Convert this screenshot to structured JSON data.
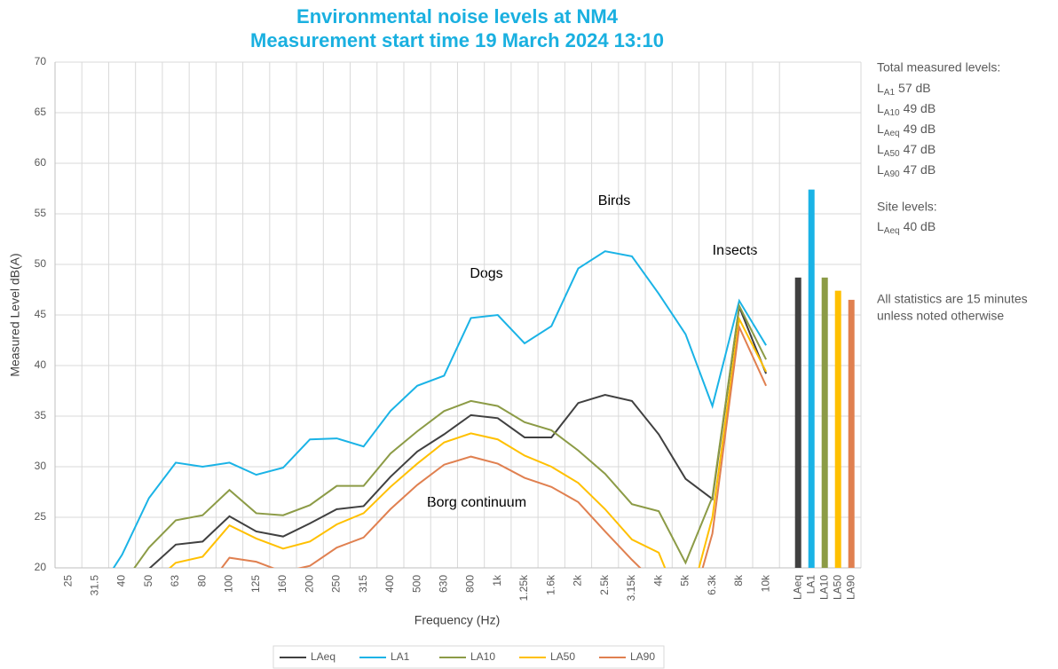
{
  "chart_data": {
    "type": "line",
    "title": "Environmental noise levels at NM4",
    "subtitle": "Measurement start time 19 March 2024 13:10",
    "x_label": "Frequency (Hz)",
    "y_label": "Measured Level dB(A)",
    "ylim": [
      20,
      70
    ],
    "yticks": [
      20,
      25,
      30,
      35,
      40,
      45,
      50,
      55,
      60,
      65,
      70
    ],
    "grid": true,
    "legend": "bottom",
    "categories": [
      "25",
      "31.5",
      "40",
      "50",
      "63",
      "80",
      "100",
      "125",
      "160",
      "200",
      "250",
      "315",
      "400",
      "500",
      "630",
      "800",
      "1k",
      "1.25k",
      "1.6k",
      "2k",
      "2.5k",
      "3.15k",
      "4k",
      "5k",
      "6.3k",
      "8k",
      "10k"
    ],
    "series": [
      {
        "name": "LAeq",
        "color": "#404040",
        "values": [
          null,
          null,
          null,
          19.9,
          22.3,
          22.6,
          25.1,
          23.6,
          23.1,
          24.4,
          25.8,
          26.1,
          29.0,
          31.5,
          33.2,
          35.1,
          34.8,
          32.9,
          32.9,
          36.3,
          37.1,
          36.5,
          33.2,
          28.8,
          26.8,
          45.8,
          39.2
        ]
      },
      {
        "name": "LA1",
        "color": "#1ab3e6",
        "values": [
          null,
          17.2,
          21.3,
          26.9,
          30.4,
          30.0,
          30.4,
          29.2,
          29.9,
          32.7,
          32.8,
          32.0,
          35.5,
          38.0,
          39.0,
          44.7,
          45.0,
          42.2,
          43.9,
          49.6,
          51.3,
          50.8,
          47.1,
          43.1,
          36.0,
          46.4,
          42.0
        ]
      },
      {
        "name": "LA10",
        "color": "#8c9b46",
        "values": [
          null,
          null,
          18.3,
          22.0,
          24.7,
          25.2,
          27.7,
          25.4,
          25.2,
          26.2,
          28.1,
          28.1,
          31.3,
          33.5,
          35.5,
          36.5,
          36.0,
          34.4,
          33.6,
          31.6,
          29.3,
          26.3,
          25.6,
          20.5,
          27.0,
          45.9,
          40.6
        ]
      },
      {
        "name": "LA50",
        "color": "#ffc000",
        "values": [
          null,
          null,
          null,
          18.2,
          20.5,
          21.1,
          24.2,
          22.9,
          21.9,
          22.6,
          24.3,
          25.4,
          28.0,
          30.3,
          32.4,
          33.3,
          32.7,
          31.1,
          30.0,
          28.4,
          25.8,
          22.8,
          21.5,
          15.0,
          25.0,
          44.6,
          39.4
        ]
      },
      {
        "name": "LA90",
        "color": "#e08050",
        "values": [
          null,
          null,
          null,
          null,
          null,
          17.5,
          21.0,
          20.6,
          19.6,
          20.2,
          22.0,
          23.0,
          25.8,
          28.2,
          30.2,
          31.0,
          30.3,
          28.9,
          28.0,
          26.5,
          23.6,
          20.8,
          18.2,
          14.0,
          23.4,
          43.8,
          38.0
        ]
      }
    ],
    "totals": {
      "categories": [
        "LAeq",
        "LA1",
        "LA10",
        "LA50",
        "LA90"
      ],
      "values": [
        48.7,
        57.4,
        48.7,
        47.4,
        46.5
      ],
      "colors": [
        "#404040",
        "#1ab3e6",
        "#8c9b46",
        "#ffc000",
        "#e08050"
      ]
    },
    "annotations": [
      "Birds",
      "Dogs",
      "Insects",
      "Borg continuum"
    ]
  },
  "side_panel": {
    "heading": "Total measured levels:",
    "items": [
      {
        "main": "L",
        "sub": "A1",
        "value": "57 dB"
      },
      {
        "main": "L",
        "sub": "A10",
        "value": "49 dB"
      },
      {
        "main": "L",
        "sub": "Aeq",
        "value": "49 dB"
      },
      {
        "main": "L",
        "sub": "A50",
        "value": "47 dB"
      },
      {
        "main": "L",
        "sub": "A90",
        "value": "47 dB"
      }
    ],
    "site_heading": "Site levels:",
    "site_items": [
      {
        "main": "L",
        "sub": "Aeq",
        "value": "40 dB"
      }
    ],
    "note": [
      "All statistics are 15 minutes",
      "unless noted otherwise"
    ]
  }
}
